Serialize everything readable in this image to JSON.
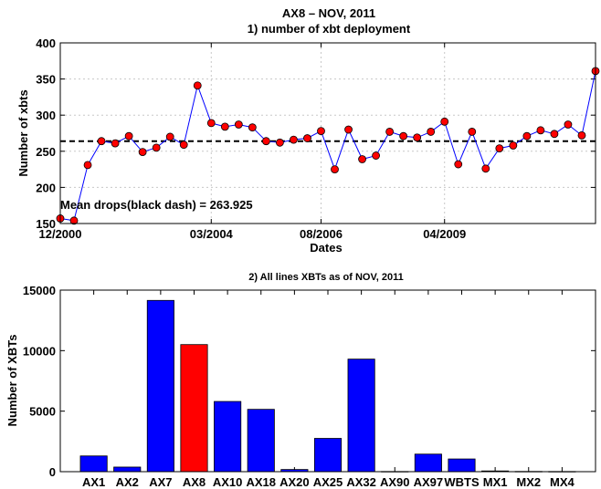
{
  "chart_data": [
    {
      "type": "line",
      "title": "AX8 – NOV, 2011",
      "subtitle": "1) number of xbt deployment",
      "xlabel": "Dates",
      "ylabel": "Number of xbts",
      "ylim": [
        150,
        400
      ],
      "yticks": [
        150,
        200,
        250,
        300,
        350,
        400
      ],
      "xtick_labels": [
        "12/2000",
        "03/2004",
        "08/2006",
        "04/2009"
      ],
      "xtick_index": [
        0,
        11,
        19,
        28
      ],
      "grid": true,
      "line_color": "#0000ff",
      "marker_color": "#ff0000",
      "mean": 263.925,
      "mean_label": "Mean drops(black dash) = 263.925",
      "series": [
        {
          "values": [
            157,
            154,
            231,
            264,
            261,
            271,
            249,
            255,
            270,
            259,
            341,
            289,
            284,
            287,
            283,
            264,
            262,
            266,
            268,
            278,
            225,
            280,
            239,
            244,
            277,
            271,
            269,
            277,
            291,
            232,
            277,
            226,
            254,
            258,
            271,
            279,
            274,
            287,
            272,
            361
          ]
        }
      ]
    },
    {
      "type": "bar",
      "title": "2) All lines XBTs as of NOV, 2011",
      "xlabel": "",
      "ylabel": "Number of XBTs",
      "ylim": [
        0,
        15000
      ],
      "yticks": [
        0,
        5000,
        10000,
        15000
      ],
      "grid": false,
      "bar_color": "#0000ff",
      "highlight_color": "#ff0000",
      "highlight": "AX8",
      "categories": [
        "AX1",
        "AX2",
        "AX7",
        "AX8",
        "AX10",
        "AX18",
        "AX20",
        "AX25",
        "AX32",
        "AX90",
        "AX97",
        "WBTS",
        "MX1",
        "MX2",
        "MX4"
      ],
      "values": [
        1300,
        380,
        14150,
        10500,
        5800,
        5150,
        180,
        2750,
        9300,
        15,
        1450,
        1050,
        60,
        20,
        15
      ]
    }
  ]
}
